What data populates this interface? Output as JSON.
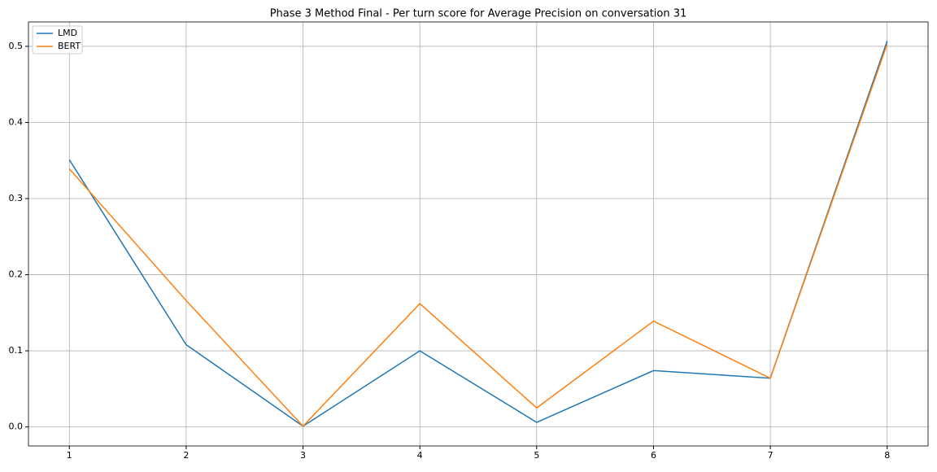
{
  "chart_data": {
    "type": "line",
    "title": "Phase 3 Method Final - Per turn score for Average Precision on conversation 31",
    "x": [
      1,
      2,
      3,
      4,
      5,
      6,
      7,
      8
    ],
    "series": [
      {
        "name": "LMD",
        "color": "#1f77b4",
        "values": [
          0.351,
          0.108,
          0.001,
          0.1,
          0.006,
          0.074,
          0.064,
          0.507
        ]
      },
      {
        "name": "BERT",
        "color": "#ff7f0e",
        "values": [
          0.339,
          0.166,
          0.001,
          0.162,
          0.025,
          0.139,
          0.064,
          0.503
        ]
      }
    ],
    "xlim": [
      0.65,
      8.35
    ],
    "ylim": [
      -0.025,
      0.532
    ],
    "xticks": [
      1,
      2,
      3,
      4,
      5,
      6,
      7,
      8
    ],
    "yticks": [
      {
        "value": 0,
        "label": "0.0"
      },
      0.1,
      0.2,
      0.3,
      0.4,
      0.5
    ],
    "grid": true,
    "legend": "upper left"
  }
}
